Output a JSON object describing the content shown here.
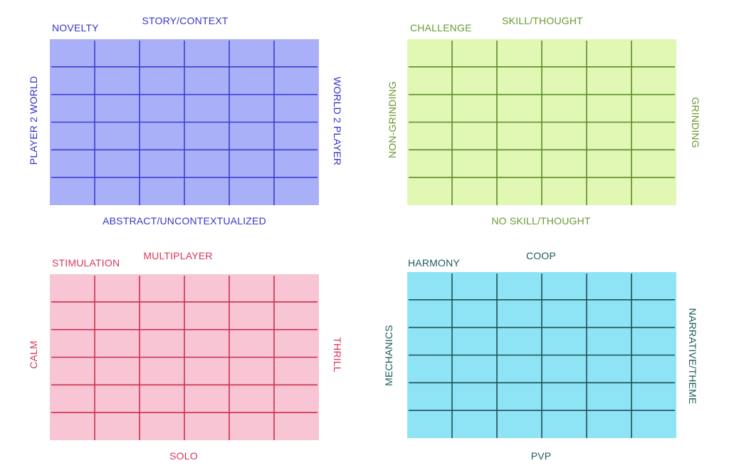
{
  "quadrants": [
    {
      "id": "novelty",
      "corner_label": "NOVELTY",
      "top_label": "STORY/CONTEXT",
      "bottom_label": "ABSTRACT/UNCONTEXTUALIZED",
      "left_label": "PLAYER 2 WORLD",
      "right_label": "WORLD 2 PLAYER",
      "fill_color": "#aab0f8",
      "line_color": "#3a3fcf",
      "text_color": "#3535c8",
      "columns": 6,
      "rows": 6
    },
    {
      "id": "challenge",
      "corner_label": "CHALLENGE",
      "top_label": "SKILL/THOUGHT",
      "bottom_label": "NO SKILL/THOUGHT",
      "left_label": "NON-GRINDING",
      "right_label": "GRINDING",
      "fill_color": "#e0f8b3",
      "line_color": "#5d8a2a",
      "text_color": "#6a9a32",
      "columns": 6,
      "rows": 6
    },
    {
      "id": "stimulation",
      "corner_label": "STIMULATION",
      "top_label": "MULTIPLAYER",
      "bottom_label": "SOLO",
      "left_label": "CALM",
      "right_label": "THRILL",
      "fill_color": "#f7c5d3",
      "line_color": "#cc3050",
      "text_color": "#d8365a",
      "columns": 6,
      "rows": 6
    },
    {
      "id": "harmony",
      "corner_label": "HARMONY",
      "top_label": "COOP",
      "bottom_label": "PVP",
      "left_label": "MECHANICS",
      "right_label": "NARRATIVE/THEME",
      "fill_color": "#8ee3f5",
      "line_color": "#1f4f55",
      "text_color": "#1f5a60",
      "columns": 6,
      "rows": 6
    }
  ]
}
